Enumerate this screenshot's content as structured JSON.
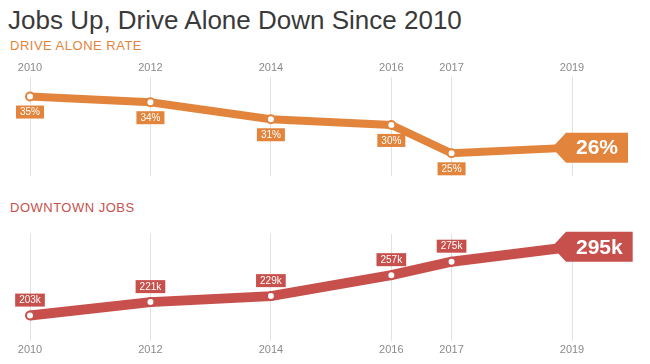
{
  "title": "Jobs Up, Drive Alone Down Since 2010",
  "chart_data": [
    {
      "type": "line",
      "title": "DRIVE ALONE RATE",
      "x": [
        2010,
        2012,
        2014,
        2016,
        2017,
        2019
      ],
      "values": [
        35,
        34,
        31,
        30,
        25,
        26
      ],
      "value_labels": [
        "35%",
        "34%",
        "31%",
        "30%",
        "25%",
        "26%"
      ],
      "color": "#e2843b",
      "xlim": [
        2010,
        2019
      ],
      "xticks": [
        2010,
        2012,
        2014,
        2016,
        2017,
        2019
      ],
      "ylim": [
        21,
        37
      ],
      "grid": true,
      "data_labels": true,
      "tick_labels": "x",
      "marker": "circle"
    },
    {
      "type": "line",
      "title": "DOWNTOWN JOBS",
      "x": [
        2010,
        2012,
        2014,
        2016,
        2017,
        2019
      ],
      "values": [
        203,
        221,
        229,
        257,
        275,
        295
      ],
      "value_labels": [
        "203k",
        "221k",
        "229k",
        "257k",
        "275k",
        "295k"
      ],
      "color": "#c8504c",
      "xlim": [
        2010,
        2019
      ],
      "xticks": [
        2010,
        2012,
        2014,
        2016,
        2017,
        2019
      ],
      "ylim": [
        180,
        312
      ],
      "grid": true,
      "data_labels": true,
      "tick_labels": "x",
      "marker": "circle"
    }
  ]
}
